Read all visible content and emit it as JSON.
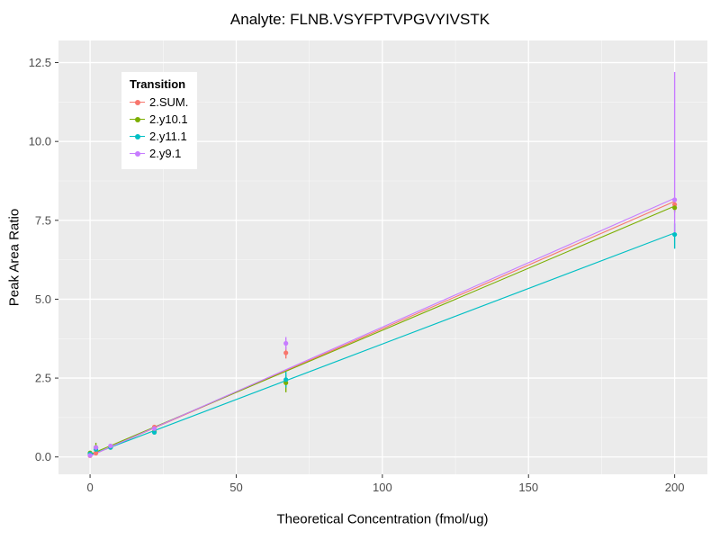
{
  "chart_data": {
    "type": "scatter",
    "title": "Analyte: FLNB.VSYFPTVPGVYIVSTK",
    "xlabel": "Theoretical Concentration (fmol/ug)",
    "ylabel": "Peak Area Ratio",
    "legend_title": "Transition",
    "legend_position": "top-left-inside",
    "grid": true,
    "panel_bg": "#EBEBEB",
    "grid_color": "#FFFFFF",
    "tick_color": "#333333",
    "tick_label_color": "#4D4D4D",
    "xlim": [
      -10.8,
      211.2
    ],
    "ylim": [
      -0.55,
      13.2
    ],
    "x_ticks": [
      0,
      50,
      100,
      150,
      200
    ],
    "x_tick_labels": [
      "0",
      "50",
      "100",
      "150",
      "200"
    ],
    "x_minor_ticks": [
      25,
      75,
      125,
      175
    ],
    "y_ticks": [
      0,
      2.5,
      5,
      7.5,
      10,
      12.5
    ],
    "y_tick_labels": [
      "0.0",
      "2.5",
      "5.0",
      "7.5",
      "10.0",
      "12.5"
    ],
    "y_minor_ticks": [
      1.25,
      3.75,
      6.25,
      8.75,
      11.25
    ],
    "series": [
      {
        "name": "2.SUM.",
        "color": "#F8766D",
        "points": [
          {
            "x": 0,
            "y": 0.04
          },
          {
            "x": 2,
            "y": 0.12
          },
          {
            "x": 7,
            "y": 0.3
          },
          {
            "x": 22,
            "y": 0.95
          },
          {
            "x": 67,
            "y": 3.3,
            "lo": 3.12,
            "hi": 3.48
          },
          {
            "x": 200,
            "y": 8.0,
            "lo": 7.8,
            "hi": 8.2
          }
        ],
        "fit": {
          "x": [
            0,
            200
          ],
          "y": [
            0.03,
            8.1
          ]
        }
      },
      {
        "name": "2.y10.1",
        "color": "#7CAE00",
        "points": [
          {
            "x": 0,
            "y": 0.13
          },
          {
            "x": 2,
            "y": 0.3,
            "lo": 0.18,
            "hi": 0.45
          },
          {
            "x": 7,
            "y": 0.32
          },
          {
            "x": 22,
            "y": 0.8
          },
          {
            "x": 67,
            "y": 2.35,
            "lo": 2.05,
            "hi": 2.6
          },
          {
            "x": 200,
            "y": 7.9,
            "lo": 7.75,
            "hi": 8.05
          }
        ],
        "fit": {
          "x": [
            0,
            200
          ],
          "y": [
            0.08,
            7.95
          ]
        }
      },
      {
        "name": "2.y11.1",
        "color": "#00BFC4",
        "points": [
          {
            "x": 0,
            "y": 0.1
          },
          {
            "x": 2,
            "y": 0.24,
            "lo": 0.15,
            "hi": 0.35
          },
          {
            "x": 7,
            "y": 0.3
          },
          {
            "x": 22,
            "y": 0.78
          },
          {
            "x": 67,
            "y": 2.45,
            "lo": 2.2,
            "hi": 2.7
          },
          {
            "x": 200,
            "y": 7.05,
            "lo": 6.6,
            "hi": 7.4
          }
        ],
        "fit": {
          "x": [
            0,
            200
          ],
          "y": [
            0.06,
            7.1
          ]
        }
      },
      {
        "name": "2.y9.1",
        "color": "#C77CFF",
        "points": [
          {
            "x": 0,
            "y": 0.05
          },
          {
            "x": 2,
            "y": 0.3
          },
          {
            "x": 7,
            "y": 0.35
          },
          {
            "x": 22,
            "y": 0.9,
            "lo": 0.82,
            "hi": 0.98
          },
          {
            "x": 67,
            "y": 3.6,
            "lo": 3.4,
            "hi": 3.8
          },
          {
            "x": 200,
            "y": 8.15,
            "lo": 7.0,
            "hi": 12.2
          }
        ],
        "fit": {
          "x": [
            0,
            200
          ],
          "y": [
            0.03,
            8.2
          ]
        }
      }
    ]
  }
}
